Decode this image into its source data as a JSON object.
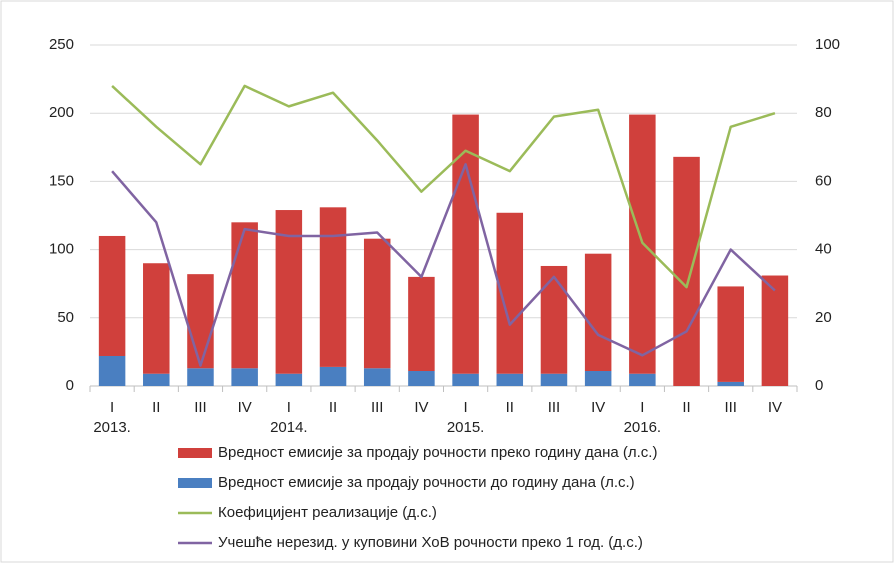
{
  "chart_data": {
    "type": "combo",
    "categories": [
      "I",
      "II",
      "III",
      "IV",
      "I",
      "II",
      "III",
      "IV",
      "I",
      "II",
      "III",
      "IV",
      "I",
      "II",
      "III",
      "IV"
    ],
    "year_labels": [
      "2013.",
      null,
      null,
      null,
      "2014.",
      null,
      null,
      null,
      "2015.",
      null,
      null,
      null,
      "2016.",
      null,
      null,
      null
    ],
    "series": [
      {
        "name": "Вредност емисије за продају рочности преко годину дана (л.с.)",
        "type": "bar",
        "color": "#d0403c",
        "values": [
          88,
          81,
          69,
          107,
          120,
          117,
          95,
          69,
          190,
          118,
          79,
          86,
          190,
          168,
          70,
          81
        ]
      },
      {
        "name": "Вредност емисије за продају рочности до годину дана (л.с.)",
        "type": "bar",
        "color": "#4a7fc1",
        "values": [
          22,
          9,
          13,
          13,
          9,
          14,
          13,
          11,
          9,
          9,
          9,
          11,
          9,
          0,
          3,
          0
        ]
      },
      {
        "name": "Коефицијент реализације (д.с.)",
        "type": "line",
        "axis": "y2",
        "color": "#9bbb59",
        "values": [
          88,
          76,
          65,
          88,
          82,
          86,
          72,
          57,
          69,
          63,
          79,
          81,
          42,
          29,
          76,
          80
        ]
      },
      {
        "name": "Учешће нерезид. у куповини ХоВ рочности преко 1 год. (д.с.)",
        "type": "line",
        "axis": "y2",
        "color": "#8064a2",
        "values": [
          63,
          48,
          6,
          46,
          44,
          44,
          45,
          32,
          65,
          18,
          32,
          15,
          9,
          16,
          40,
          28
        ]
      }
    ],
    "ylim": [
      0,
      250
    ],
    "yticks": [
      0,
      50,
      100,
      150,
      200,
      250
    ],
    "y2lim": [
      0,
      100
    ],
    "y2ticks": [
      0,
      20,
      40,
      60,
      80,
      100
    ],
    "grid": true,
    "stacked": true,
    "legend": "bottom"
  }
}
